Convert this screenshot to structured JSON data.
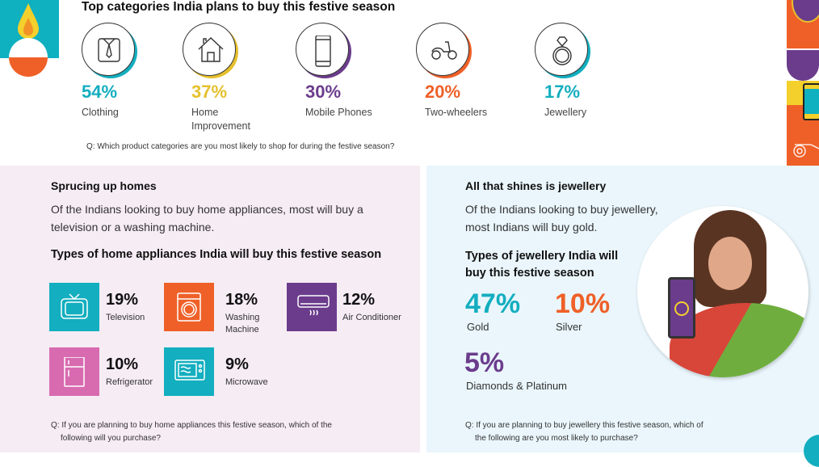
{
  "top": {
    "title": "Top categories India plans to buy this festive season",
    "categories": [
      {
        "pct": "54%",
        "label": "Clothing",
        "color": "#13aebf",
        "icon": "shirt-icon"
      },
      {
        "pct": "37%",
        "label": "Home Improvement",
        "color": "#e6c02e",
        "icon": "house-icon"
      },
      {
        "pct": "30%",
        "label": "Mobile Phones",
        "color": "#6b3c8c",
        "icon": "mobile-phone-icon"
      },
      {
        "pct": "20%",
        "label": "Two-wheelers",
        "color": "#ef6028",
        "icon": "scooter-icon"
      },
      {
        "pct": "17%",
        "label": "Jewellery",
        "color": "#13aebf",
        "icon": "ring-icon"
      }
    ],
    "question": "Q:  Which product categories are you most likely to shop for during the festive season?"
  },
  "homes": {
    "heading": "Sprucing up homes",
    "text": "Of the Indians looking to buy home appliances, most will buy a television or a washing machine.",
    "subheading": "Types of home appliances India will buy this festive season",
    "items": [
      {
        "pct": "19%",
        "label": "Television",
        "color": "#13aebf",
        "icon": "television-icon"
      },
      {
        "pct": "18%",
        "label": "Washing Machine",
        "color": "#ef6028",
        "icon": "washing-machine-icon"
      },
      {
        "pct": "12%",
        "label": "Air Conditioner",
        "color": "#6b3c8c",
        "icon": "air-conditioner-icon"
      },
      {
        "pct": "10%",
        "label": "Refrigerator",
        "color": "#d86bb0",
        "icon": "refrigerator-icon"
      },
      {
        "pct": "9%",
        "label": "Microwave",
        "color": "#13aebf",
        "icon": "microwave-icon"
      }
    ],
    "question": "Q: If you are planning to buy home appliances this festive season, which of the following will you purchase?"
  },
  "jewellery": {
    "heading": "All that shines is jewellery",
    "text": "Of the Indians looking to buy jewellery, most Indians will buy gold.",
    "subheading": "Types of jewellery India will buy this festive season",
    "items": [
      {
        "pct": "47%",
        "label": "Gold",
        "color": "#13aebf"
      },
      {
        "pct": "10%",
        "label": "Silver",
        "color": "#ef6028"
      },
      {
        "pct": "5%",
        "label": "Diamonds & Platinum",
        "color": "#6b3c8c"
      }
    ],
    "question": "Q: If you are planning to buy jewellery this festive season, which of the following are you most likely to purchase?"
  }
}
